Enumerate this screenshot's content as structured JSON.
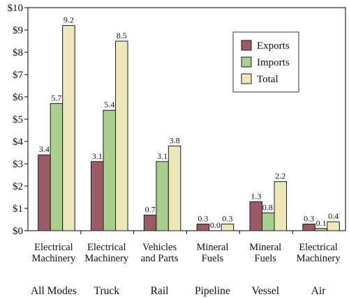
{
  "chart_data": {
    "type": "bar",
    "title": "",
    "xlabel": "",
    "ylabel": "",
    "ylim": [
      0,
      10
    ],
    "y_ticks": [
      "$0",
      "$1",
      "$2",
      "$3",
      "$4",
      "$5",
      "$6",
      "$7",
      "$8",
      "$9",
      "$10"
    ],
    "grid": false,
    "legend_position": "top-right",
    "groups": [
      {
        "category_lines": [
          "Electrical",
          "Machinery"
        ],
        "mode": "All Modes"
      },
      {
        "category_lines": [
          "Electrical",
          "Machinery"
        ],
        "mode": "Truck"
      },
      {
        "category_lines": [
          "Vehicles",
          "and Parts"
        ],
        "mode": "Rail"
      },
      {
        "category_lines": [
          "Mineral",
          "Fuels"
        ],
        "mode": "Pipeline"
      },
      {
        "category_lines": [
          "Mineral",
          "Fuels"
        ],
        "mode": "Vessel"
      },
      {
        "category_lines": [
          "Electrical",
          "Machinery"
        ],
        "mode": "Air"
      }
    ],
    "series": [
      {
        "name": "Exports",
        "color": "#9a5c64",
        "values": [
          3.4,
          3.1,
          0.7,
          0.3,
          1.3,
          0.3
        ],
        "labels": [
          "3.4",
          "3.1",
          "0.7",
          "0.3",
          "1.3",
          "0.3"
        ]
      },
      {
        "name": "Imports",
        "color": "#a9cf8f",
        "values": [
          5.7,
          5.4,
          3.1,
          0.0,
          0.8,
          0.1
        ],
        "labels": [
          "5.7",
          "5.4",
          "3.1",
          "0.0",
          "0.8",
          "0.1"
        ]
      },
      {
        "name": "Total",
        "color": "#ede6b8",
        "values": [
          9.2,
          8.5,
          3.8,
          0.3,
          2.2,
          0.4
        ],
        "labels": [
          "9.2",
          "8.5",
          "3.8",
          "0.3",
          "2.2",
          "0.4"
        ]
      }
    ]
  }
}
